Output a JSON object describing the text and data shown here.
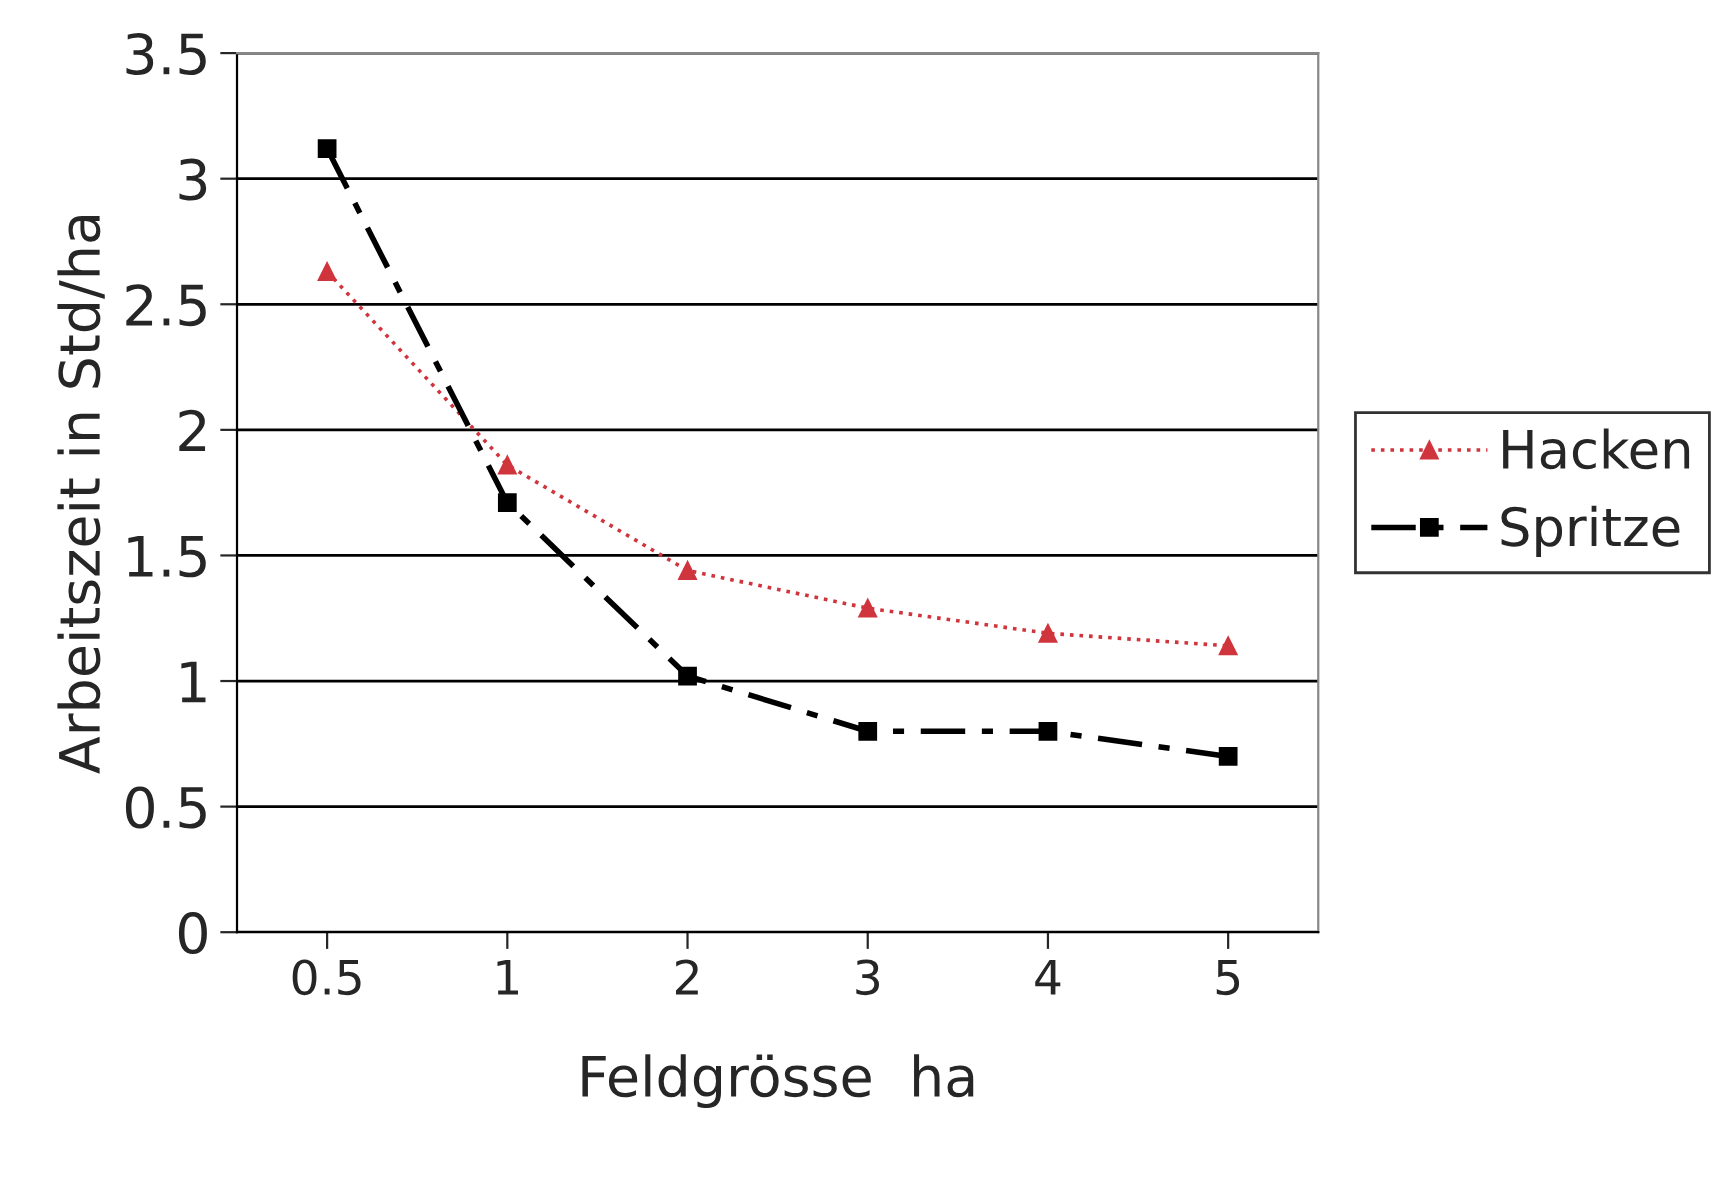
{
  "chart_data": {
    "type": "line",
    "xlabel": "Feldgrösse  ha",
    "ylabel": "Arbeitszeit in Std/ha",
    "categories": [
      "0.5",
      "1",
      "2",
      "3",
      "4",
      "5"
    ],
    "series": [
      {
        "name": "Hacken",
        "color": "#d0343c",
        "values": [
          2.63,
          1.86,
          1.44,
          1.29,
          1.19,
          1.14
        ],
        "marker": "triangle",
        "line_style": "dotted"
      },
      {
        "name": "Spritze",
        "color": "#000000",
        "values": [
          3.12,
          1.71,
          1.02,
          0.8,
          0.8,
          0.7
        ],
        "marker": "square",
        "line_style": "dashed"
      }
    ],
    "ylim": [
      0,
      3.5
    ],
    "yticks": [
      0,
      0.5,
      1,
      1.5,
      2,
      2.5,
      3,
      3.5
    ],
    "grid": "y",
    "legend": "right"
  }
}
